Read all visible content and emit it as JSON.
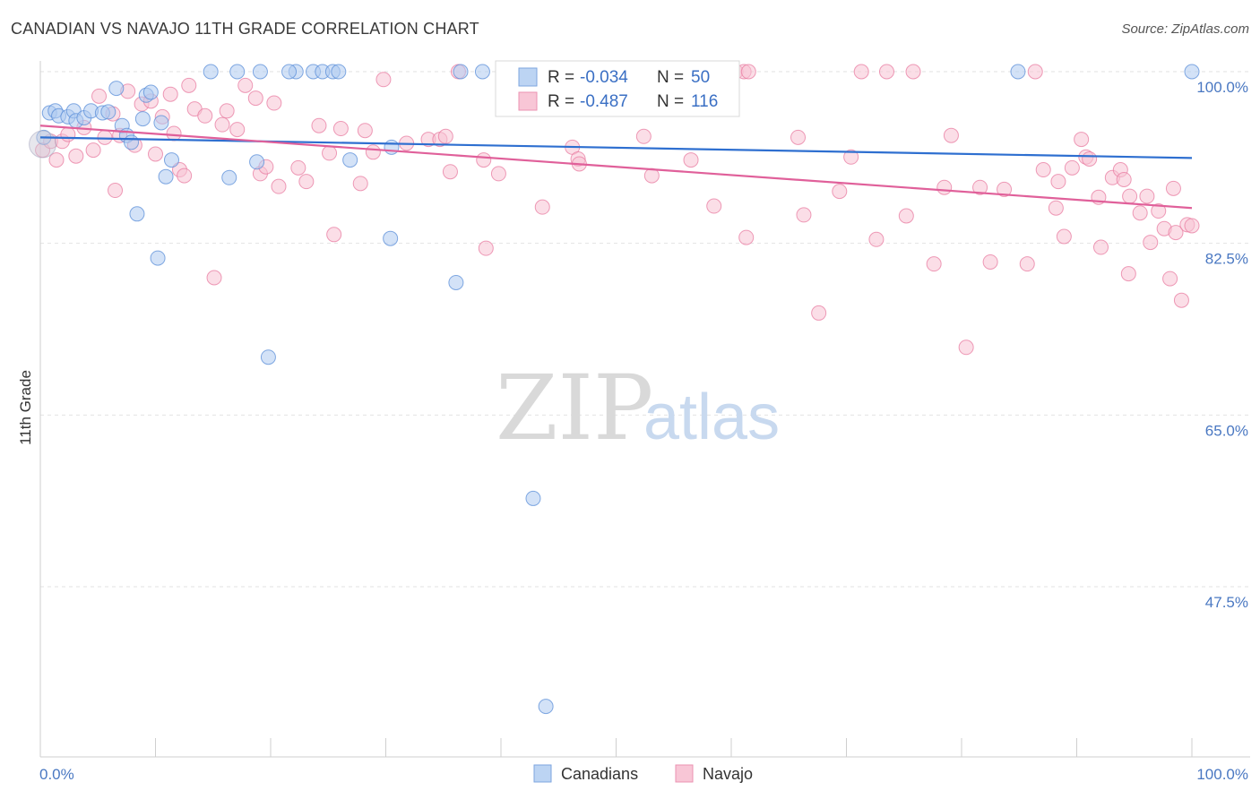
{
  "title": "CANADIAN VS NAVAJO 11TH GRADE CORRELATION CHART",
  "source": "Source: ZipAtlas.com",
  "watermark": {
    "zip": "ZIP",
    "atlas": "atlas"
  },
  "legend_box": {
    "rows": [
      {
        "r_label": "R =",
        "r_value": "-0.034",
        "n_label": "N =",
        "n_value": "50",
        "color": "#9dbfec"
      },
      {
        "r_label": "R =",
        "r_value": "-0.487",
        "n_label": "N =",
        "n_value": "116",
        "color": "#f4a9c2"
      }
    ]
  },
  "bottom_legend": [
    {
      "label": "Canadians",
      "color": "#9dbfec"
    },
    {
      "label": "Navajo",
      "color": "#f4a9c2"
    }
  ],
  "chart_data": {
    "type": "scatter",
    "title": "CANADIAN VS NAVAJO 11TH GRADE CORRELATION CHART",
    "xlabel": "",
    "ylabel": "11th Grade",
    "xlim": [
      0,
      100
    ],
    "ylim": [
      35,
      100
    ],
    "x_tick_labels": [
      "0.0%",
      "100.0%"
    ],
    "y_ticks": [
      100,
      82.5,
      65,
      47.5
    ],
    "y_tick_labels": [
      "100.0%",
      "82.5%",
      "65.0%",
      "47.5%"
    ],
    "grid": true,
    "series": [
      {
        "name": "Canadians",
        "color": "#5a8ed8",
        "fill": "#aecbf0",
        "trend": {
          "x0": 0,
          "y0": 93.3,
          "x1": 100,
          "y1": 91.2,
          "color": "#2e6fd0"
        },
        "points": [
          [
            0.3,
            93.3
          ],
          [
            0.8,
            95.8
          ],
          [
            1.3,
            96
          ],
          [
            1.6,
            95.5
          ],
          [
            2.4,
            95.4
          ],
          [
            2.9,
            96
          ],
          [
            3.1,
            95
          ],
          [
            3.8,
            95.3
          ],
          [
            4.4,
            96
          ],
          [
            5.4,
            95.8
          ],
          [
            5.9,
            95.9
          ],
          [
            7.1,
            94.5
          ],
          [
            6.6,
            98.3
          ],
          [
            7.5,
            93.5
          ],
          [
            7.9,
            92.8
          ],
          [
            8.4,
            85.5
          ],
          [
            8.9,
            95.2
          ],
          [
            9.2,
            97.6
          ],
          [
            9.6,
            97.9
          ],
          [
            10.5,
            94.8
          ],
          [
            10.9,
            89.3
          ],
          [
            11.4,
            91
          ],
          [
            10.2,
            81
          ],
          [
            14.8,
            100
          ],
          [
            17.1,
            100
          ],
          [
            19.1,
            100
          ],
          [
            16.4,
            89.2
          ],
          [
            18.8,
            90.8
          ],
          [
            22.2,
            100
          ],
          [
            21.6,
            100
          ],
          [
            23.7,
            100
          ],
          [
            24.5,
            100
          ],
          [
            25.4,
            100
          ],
          [
            25.9,
            100
          ],
          [
            26.9,
            91
          ],
          [
            19.8,
            70.9
          ],
          [
            30.5,
            92.3
          ],
          [
            30.4,
            83
          ],
          [
            36.5,
            100
          ],
          [
            38.4,
            100
          ],
          [
            36.1,
            78.5
          ],
          [
            42.4,
            100
          ],
          [
            40.5,
            100
          ],
          [
            42.8,
            56.5
          ],
          [
            43.9,
            35.3
          ],
          [
            48.3,
            100
          ],
          [
            52.9,
            100
          ],
          [
            53,
            100
          ],
          [
            84.9,
            100
          ],
          [
            100,
            100
          ]
        ]
      },
      {
        "name": "Navajo",
        "color": "#e87ba0",
        "fill": "#f7c2d4",
        "trend": {
          "x0": 0,
          "y0": 94.5,
          "x1": 100,
          "y1": 86.1,
          "color": "#e0609a"
        },
        "points": [
          [
            0.2,
            92
          ],
          [
            0.9,
            92.9
          ],
          [
            1.4,
            91
          ],
          [
            1.9,
            92.9
          ],
          [
            2.4,
            93.6
          ],
          [
            3.1,
            91.4
          ],
          [
            3.8,
            94.3
          ],
          [
            4.6,
            92
          ],
          [
            5.1,
            97.5
          ],
          [
            5.6,
            93.3
          ],
          [
            6.3,
            95.7
          ],
          [
            6.5,
            87.9
          ],
          [
            6.9,
            93.5
          ],
          [
            7.6,
            98
          ],
          [
            8.2,
            92.5
          ],
          [
            8.8,
            96.7
          ],
          [
            9.6,
            97
          ],
          [
            10,
            91.6
          ],
          [
            10.6,
            95.4
          ],
          [
            11.3,
            97.7
          ],
          [
            11.6,
            93.7
          ],
          [
            12.1,
            90
          ],
          [
            12.5,
            89.4
          ],
          [
            12.9,
            98.6
          ],
          [
            13.4,
            96.2
          ],
          [
            14.3,
            95.5
          ],
          [
            15.1,
            79
          ],
          [
            15.8,
            94.6
          ],
          [
            16.2,
            96
          ],
          [
            17.1,
            94.1
          ],
          [
            17.8,
            98.6
          ],
          [
            18.7,
            97.3
          ],
          [
            19.1,
            89.6
          ],
          [
            19.6,
            90.3
          ],
          [
            20.3,
            96.8
          ],
          [
            20.7,
            88.3
          ],
          [
            22.4,
            90.2
          ],
          [
            23.1,
            88.8
          ],
          [
            24.2,
            94.5
          ],
          [
            25.1,
            91.7
          ],
          [
            25.5,
            83.4
          ],
          [
            26.1,
            94.2
          ],
          [
            27.8,
            88.6
          ],
          [
            28.2,
            94
          ],
          [
            28.9,
            91.8
          ],
          [
            29.8,
            99.2
          ],
          [
            31.8,
            92.7
          ],
          [
            33.7,
            93.1
          ],
          [
            34.7,
            93.1
          ],
          [
            35.2,
            93.4
          ],
          [
            35.6,
            89.8
          ],
          [
            36.3,
            100
          ],
          [
            38.5,
            91
          ],
          [
            38.7,
            82
          ],
          [
            39.8,
            89.6
          ],
          [
            43.6,
            86.2
          ],
          [
            46.2,
            92.3
          ],
          [
            46.7,
            91.1
          ],
          [
            46.8,
            90.6
          ],
          [
            46,
            100
          ],
          [
            52.4,
            93.4
          ],
          [
            53.1,
            89.4
          ],
          [
            53.9,
            100
          ],
          [
            56.5,
            91
          ],
          [
            58.5,
            86.3
          ],
          [
            60.4,
            100
          ],
          [
            61.1,
            100
          ],
          [
            61.3,
            83.1
          ],
          [
            61.5,
            100
          ],
          [
            65.8,
            93.3
          ],
          [
            66.3,
            85.4
          ],
          [
            67.6,
            75.4
          ],
          [
            69.4,
            87.8
          ],
          [
            70.4,
            91.3
          ],
          [
            71.3,
            100
          ],
          [
            72.6,
            82.9
          ],
          [
            73.5,
            100
          ],
          [
            75.2,
            85.3
          ],
          [
            75.8,
            100
          ],
          [
            77.6,
            80.4
          ],
          [
            78.5,
            88.2
          ],
          [
            79.1,
            93.5
          ],
          [
            80.4,
            71.9
          ],
          [
            81.6,
            88.2
          ],
          [
            82.5,
            80.6
          ],
          [
            83.7,
            88
          ],
          [
            85.7,
            80.4
          ],
          [
            86.4,
            100
          ],
          [
            87.1,
            90
          ],
          [
            88.2,
            86.1
          ],
          [
            88.4,
            88.8
          ],
          [
            88.9,
            83.2
          ],
          [
            89.6,
            90.2
          ],
          [
            90.4,
            93.1
          ],
          [
            90.8,
            91.3
          ],
          [
            91.1,
            91.1
          ],
          [
            91.9,
            87.2
          ],
          [
            92.1,
            82.1
          ],
          [
            93.1,
            89.2
          ],
          [
            93.8,
            90
          ],
          [
            94.1,
            89
          ],
          [
            94.5,
            79.4
          ],
          [
            94.6,
            87.3
          ],
          [
            95.5,
            85.6
          ],
          [
            96.1,
            87.3
          ],
          [
            96.4,
            82.6
          ],
          [
            97.1,
            85.8
          ],
          [
            97.6,
            84
          ],
          [
            98.1,
            78.9
          ],
          [
            98.4,
            88.1
          ],
          [
            98.6,
            83.6
          ],
          [
            99.1,
            76.7
          ],
          [
            99.6,
            84.4
          ],
          [
            100,
            84.3
          ]
        ]
      }
    ]
  }
}
